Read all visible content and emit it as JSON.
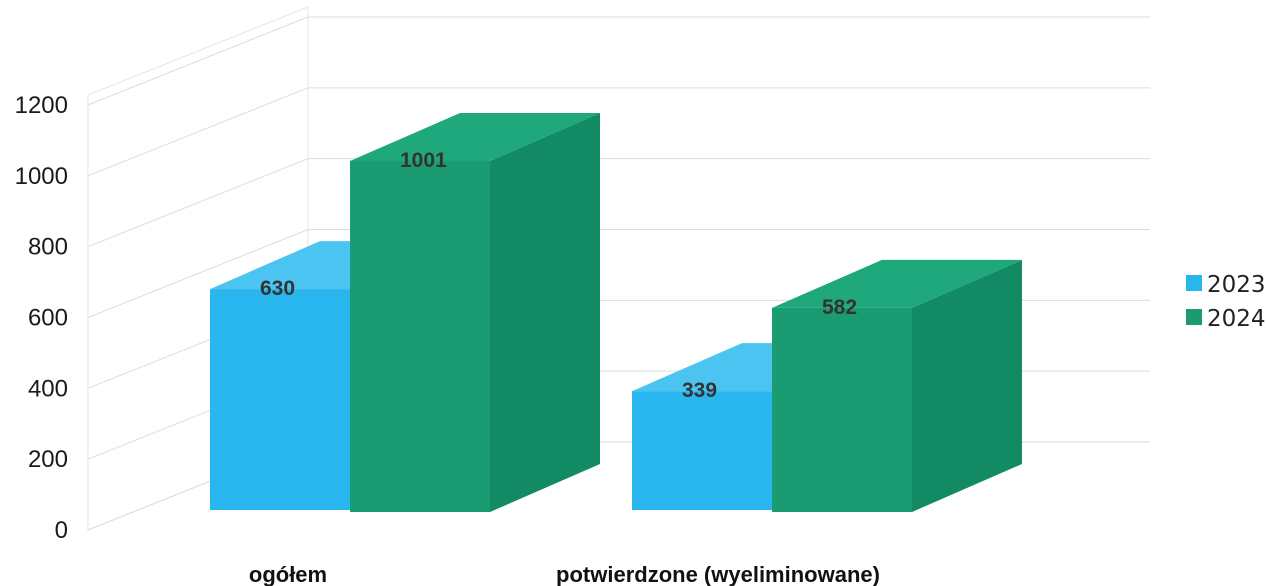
{
  "chart_data": {
    "type": "bar",
    "categories": [
      "ogółem",
      "potwierdzone (wyeliminowane)"
    ],
    "series": [
      {
        "name": "2023",
        "values": [
          630,
          339
        ],
        "color": "#29b6ee",
        "side_color": "#1e9cd6",
        "top_color": "#4cc4f2"
      },
      {
        "name": "2024",
        "values": [
          1001,
          582
        ],
        "color": "#1a9b72",
        "side_color": "#128a63",
        "top_color": "#1fa87c"
      }
    ],
    "y_ticks": [
      "0",
      "200",
      "400",
      "600",
      "800",
      "1000",
      "1200"
    ],
    "ylim": [
      0,
      1200
    ],
    "grid": true,
    "legend_position": "right",
    "title": "",
    "xlabel": "",
    "ylabel": ""
  }
}
